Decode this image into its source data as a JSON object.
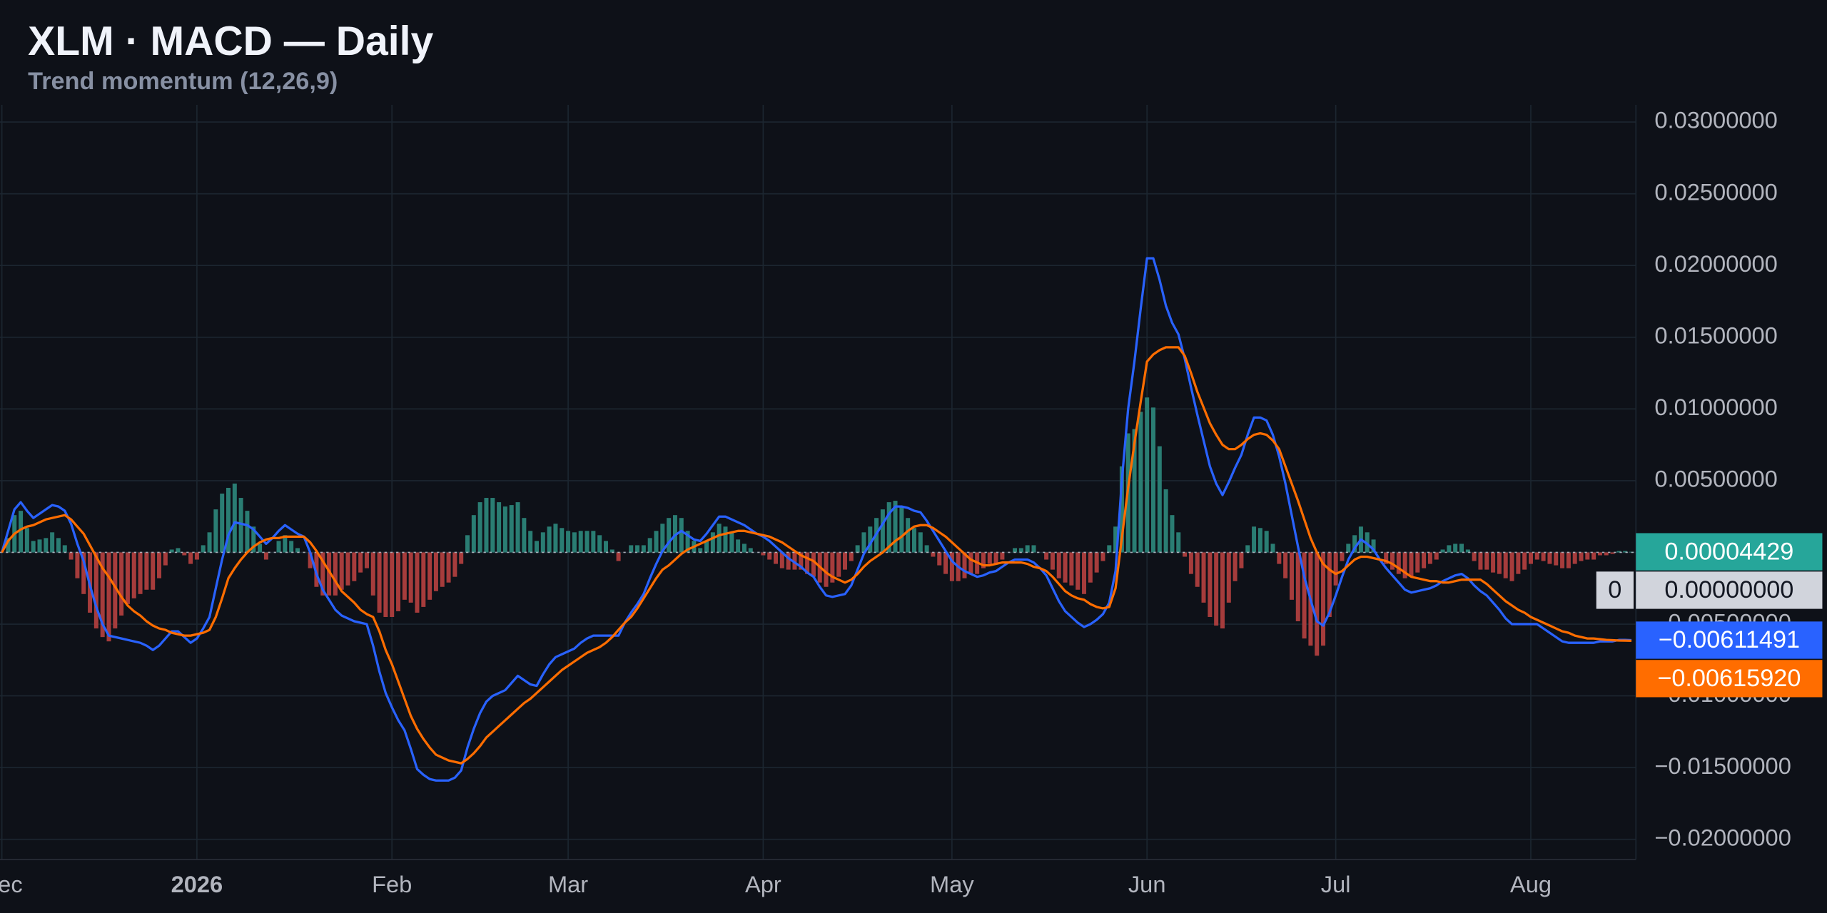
{
  "chart_data": {
    "type": "macd",
    "title": "XLM · MACD — Daily",
    "subtitle": "Trend momentum (12,26,9)",
    "categories": [
      "Dec",
      null,
      null,
      null,
      null,
      null,
      null,
      null,
      null,
      null,
      null,
      null,
      null,
      null,
      null,
      null,
      null,
      null,
      null,
      null,
      null,
      null,
      null,
      null,
      null,
      null,
      null,
      null,
      null,
      null,
      null,
      "2026",
      null,
      null,
      null,
      null,
      null,
      null,
      null,
      null,
      null,
      null,
      null,
      null,
      null,
      null,
      null,
      null,
      null,
      null,
      null,
      null,
      null,
      null,
      null,
      null,
      null,
      null,
      null,
      null,
      null,
      null,
      "Feb",
      null,
      null,
      null,
      null,
      null,
      null,
      null,
      null,
      null,
      null,
      null,
      null,
      null,
      null,
      null,
      null,
      null,
      null,
      null,
      null,
      null,
      null,
      null,
      null,
      null,
      null,
      null,
      "Mar",
      null,
      null,
      null,
      null,
      null,
      null,
      null,
      null,
      null,
      null,
      null,
      null,
      null,
      null,
      null,
      null,
      null,
      null,
      null,
      null,
      null,
      null,
      null,
      null,
      null,
      null,
      null,
      null,
      null,
      null,
      "Apr",
      null,
      null,
      null,
      null,
      null,
      null,
      null,
      null,
      null,
      null,
      null,
      null,
      null,
      null,
      null,
      null,
      null,
      null,
      null,
      null,
      null,
      null,
      null,
      null,
      null,
      null,
      null,
      null,
      null,
      "May",
      null,
      null,
      null,
      null,
      null,
      null,
      null,
      null,
      null,
      null,
      null,
      null,
      null,
      null,
      null,
      null,
      null,
      null,
      null,
      null,
      null,
      null,
      null,
      null,
      null,
      null,
      null,
      null,
      null,
      null,
      "Jun",
      null,
      null,
      null,
      null,
      null,
      null,
      null,
      null,
      null,
      null,
      null,
      null,
      null,
      null,
      null,
      null,
      null,
      null,
      null,
      null,
      null,
      null,
      null,
      null,
      null,
      null,
      null,
      null,
      null,
      "Jul",
      null,
      null,
      null,
      null,
      null,
      null,
      null,
      null,
      null,
      null,
      null,
      null,
      null,
      null,
      null,
      null,
      null,
      null,
      null,
      null,
      null,
      null,
      null,
      null,
      null,
      null,
      null,
      null,
      null,
      null,
      "Aug",
      null,
      null,
      null,
      null,
      null,
      null,
      null,
      null,
      null,
      null,
      null,
      null,
      null,
      null,
      null,
      null
    ],
    "ylim": [
      -0.0214,
      0.0312
    ],
    "yticks": [
      {
        "value": 0.03,
        "label": "0.03000000"
      },
      {
        "value": 0.025,
        "label": "0.02500000"
      },
      {
        "value": 0.02,
        "label": "0.02000000"
      },
      {
        "value": 0.015,
        "label": "0.01500000"
      },
      {
        "value": 0.01,
        "label": "0.01000000"
      },
      {
        "value": 0.005,
        "label": "0.00500000"
      },
      {
        "value": 0,
        "label": "0.00000000"
      },
      {
        "value": -0.005,
        "label": "−0.00500000"
      },
      {
        "value": -0.01,
        "label": "−0.01000000"
      },
      {
        "value": -0.015,
        "label": "−0.01500000"
      },
      {
        "value": -0.02,
        "label": "−0.02000000"
      }
    ],
    "grid": true,
    "zero_line": {
      "value": 0,
      "tag": "0",
      "label": "0.00000000"
    },
    "histogram": {
      "positive_color": "#2a7d73",
      "negative_color": "#a63c3c",
      "tag_color": "#26a69a",
      "last_label": "0.00004429",
      "values": [
        0,
        0.001,
        0.0026,
        0.0029,
        0.0017,
        0.0008,
        0.0009,
        0.001,
        0.0014,
        0.001,
        0.0005,
        -0.0005,
        -0.0018,
        -0.0029,
        -0.0042,
        -0.0053,
        -0.0059,
        -0.0062,
        -0.0053,
        -0.0044,
        -0.0036,
        -0.0032,
        -0.0029,
        -0.0026,
        -0.0026,
        -0.0018,
        -0.0009,
        0.0002,
        0.0003,
        -0.0002,
        -0.0008,
        -0.0005,
        0.0005,
        0.0014,
        0.003,
        0.0041,
        0.0045,
        0.0048,
        0.0038,
        0.0029,
        0.0018,
        0.0006,
        -0.0005,
        0,
        0.0008,
        0.0012,
        0.0008,
        0.0003,
        0,
        -0.0011,
        -0.0024,
        -0.003,
        -0.003,
        -0.003,
        -0.0026,
        -0.0023,
        -0.002,
        -0.0014,
        -0.0011,
        -0.003,
        -0.0042,
        -0.0045,
        -0.0045,
        -0.0041,
        -0.0033,
        -0.0035,
        -0.0042,
        -0.0038,
        -0.0033,
        -0.0027,
        -0.0024,
        -0.0021,
        -0.0017,
        -0.0008,
        0.0012,
        0.0026,
        0.0035,
        0.0038,
        0.0038,
        0.0035,
        0.0032,
        0.0033,
        0.0035,
        0.0024,
        0.0015,
        0.0008,
        0.0014,
        0.0018,
        0.002,
        0.0017,
        0.0015,
        0.0014,
        0.0015,
        0.0015,
        0.0015,
        0.0012,
        0.0008,
        0.0002,
        -0.0006,
        0,
        0.0005,
        0.0005,
        0.0005,
        0.001,
        0.0015,
        0.002,
        0.0024,
        0.0026,
        0.0024,
        0.0015,
        0.0008,
        0.0003,
        0.0008,
        0.0014,
        0.002,
        0.0018,
        0.0014,
        0.0009,
        0.0006,
        0.0003,
        0,
        -0.0002,
        -0.0005,
        -0.0008,
        -0.0011,
        -0.0012,
        -0.0012,
        -0.0012,
        -0.0015,
        -0.0017,
        -0.0021,
        -0.0024,
        -0.0021,
        -0.0017,
        -0.0012,
        -0.0006,
        0.0005,
        0.0014,
        0.0018,
        0.0024,
        0.003,
        0.0035,
        0.0036,
        0.0032,
        0.0024,
        0.0017,
        0.0014,
        0.0005,
        -0.0003,
        -0.0009,
        -0.0015,
        -0.002,
        -0.002,
        -0.0018,
        -0.0015,
        -0.0015,
        -0.0011,
        -0.0008,
        -0.0008,
        -0.0005,
        0,
        0.0003,
        0.0003,
        0.0005,
        0.0005,
        0,
        -0.0005,
        -0.0012,
        -0.0018,
        -0.0021,
        -0.0023,
        -0.0026,
        -0.0029,
        -0.0021,
        -0.0014,
        -0.0006,
        0.0005,
        0.0018,
        0.006,
        0.0083,
        0.0086,
        0.0098,
        0.0108,
        0.0101,
        0.0074,
        0.0044,
        0.0026,
        0.0014,
        -0.0003,
        -0.0015,
        -0.0024,
        -0.0035,
        -0.0045,
        -0.0051,
        -0.0053,
        -0.0035,
        -0.002,
        -0.0011,
        0.0005,
        0.0018,
        0.0017,
        0.0015,
        0.0006,
        -0.0008,
        -0.0018,
        -0.0033,
        -0.0048,
        -0.006,
        -0.0065,
        -0.0072,
        -0.0065,
        -0.0045,
        -0.0023,
        -0.0006,
        0.0006,
        0.0012,
        0.0018,
        0.0014,
        0.0009,
        0,
        -0.0008,
        -0.0012,
        -0.0015,
        -0.0018,
        -0.0017,
        -0.0014,
        -0.0011,
        -0.0008,
        -0.0005,
        0.0002,
        0.0005,
        0.0006,
        0.0006,
        0.0002,
        -0.0006,
        -0.0012,
        -0.0012,
        -0.0014,
        -0.0015,
        -0.0018,
        -0.002,
        -0.0015,
        -0.0012,
        -0.0008,
        -0.0005,
        -0.0006,
        -0.0008,
        -0.0009,
        -0.0011,
        -0.0011,
        -0.0008,
        -0.0006,
        -0.0005,
        -0.0005,
        -0.0002,
        -0.0002,
        -0.0001,
        0.0001,
        0.0001,
        4.429e-05
      ]
    },
    "series": [
      {
        "color": "#2962ff",
        "last_label": "−0.00611491",
        "values": [
          0,
          0.0015,
          0.003,
          0.0035,
          0.0029,
          0.0024,
          0.0027,
          0.003,
          0.0033,
          0.0032,
          0.0029,
          0.002,
          0.0006,
          -0.0006,
          -0.0023,
          -0.0038,
          -0.005,
          -0.0058,
          -0.0059,
          -0.006,
          -0.0061,
          -0.0062,
          -0.0063,
          -0.0065,
          -0.0068,
          -0.0065,
          -0.006,
          -0.0055,
          -0.0055,
          -0.0059,
          -0.0063,
          -0.006,
          -0.0053,
          -0.0045,
          -0.0025,
          -0.0005,
          0.0012,
          0.0021,
          0.002,
          0.0019,
          0.0016,
          0.0011,
          0.0006,
          0.001,
          0.0015,
          0.0019,
          0.0016,
          0.0013,
          0.0011,
          0,
          -0.0015,
          -0.0026,
          -0.0033,
          -0.004,
          -0.0044,
          -0.0046,
          -0.0048,
          -0.0049,
          -0.005,
          -0.0065,
          -0.0083,
          -0.0098,
          -0.0108,
          -0.0117,
          -0.0124,
          -0.0137,
          -0.0151,
          -0.0155,
          -0.0158,
          -0.0159,
          -0.0159,
          -0.0159,
          -0.0157,
          -0.0152,
          -0.0136,
          -0.0123,
          -0.0112,
          -0.0104,
          -0.01,
          -0.0098,
          -0.0096,
          -0.0091,
          -0.0086,
          -0.0089,
          -0.0092,
          -0.0093,
          -0.0085,
          -0.0078,
          -0.0073,
          -0.0071,
          -0.0069,
          -0.0067,
          -0.0063,
          -0.006,
          -0.0058,
          -0.0058,
          -0.0058,
          -0.0058,
          -0.0058,
          -0.0049,
          -0.0042,
          -0.0036,
          -0.0029,
          -0.0018,
          -0.0008,
          0.0001,
          0.0007,
          0.0012,
          0.0015,
          0.0012,
          0.0009,
          0.0008,
          0.0013,
          0.0019,
          0.0025,
          0.0025,
          0.0023,
          0.0021,
          0.0019,
          0.0016,
          0.0013,
          0.0011,
          0.0008,
          0.0004,
          0,
          -0.0004,
          -0.0007,
          -0.001,
          -0.0014,
          -0.0017,
          -0.0024,
          -0.003,
          -0.0031,
          -0.003,
          -0.0029,
          -0.0023,
          -0.0012,
          -0.0001,
          0.0006,
          0.0013,
          0.002,
          0.0027,
          0.0032,
          0.0032,
          0.0031,
          0.0029,
          0.0028,
          0.0022,
          0.0015,
          0.0008,
          0.0001,
          -0.0006,
          -0.001,
          -0.0013,
          -0.0015,
          -0.0017,
          -0.0016,
          -0.0014,
          -0.0013,
          -0.001,
          -0.0007,
          -0.0005,
          -0.0005,
          -0.0005,
          -0.0007,
          -0.0011,
          -0.0016,
          -0.0025,
          -0.0034,
          -0.0041,
          -0.0045,
          -0.0049,
          -0.0052,
          -0.005,
          -0.0047,
          -0.0043,
          -0.0035,
          -0.0013,
          0.005,
          0.01,
          0.0133,
          0.017,
          0.0205,
          0.0205,
          0.019,
          0.0172,
          0.016,
          0.0152,
          0.0135,
          0.0115,
          0.0096,
          0.0078,
          0.006,
          0.0048,
          0.004,
          0.0049,
          0.0059,
          0.0068,
          0.0082,
          0.0094,
          0.0094,
          0.0092,
          0.0082,
          0.0067,
          0.0048,
          0.0026,
          0.0004,
          -0.0017,
          -0.0033,
          -0.0048,
          -0.0051,
          -0.0042,
          -0.003,
          -0.0017,
          -0.0005,
          0.0003,
          0.0009,
          0.0006,
          0.0002,
          -0.0005,
          -0.0011,
          -0.0016,
          -0.0021,
          -0.0026,
          -0.0028,
          -0.0027,
          -0.0026,
          -0.0025,
          -0.0023,
          -0.002,
          -0.0018,
          -0.0016,
          -0.0015,
          -0.0018,
          -0.0023,
          -0.0027,
          -0.003,
          -0.0035,
          -0.004,
          -0.0046,
          -0.005,
          -0.005,
          -0.005,
          -0.005,
          -0.005,
          -0.0053,
          -0.0056,
          -0.0059,
          -0.0062,
          -0.0063,
          -0.0063,
          -0.0063,
          -0.0063,
          -0.0063,
          -0.0062,
          -0.0062,
          -0.0062,
          -0.0061,
          -0.0061,
          -0.00611491
        ]
      },
      {
        "color": "#ff6d00",
        "last_label": "−0.00615920",
        "values": [
          0,
          0.0008,
          0.0013,
          0.0016,
          0.0018,
          0.0019,
          0.0021,
          0.0023,
          0.0024,
          0.0025,
          0.0026,
          0.0023,
          0.0018,
          0.0013,
          0.0005,
          -0.0003,
          -0.0011,
          -0.0017,
          -0.0024,
          -0.0031,
          -0.0037,
          -0.0041,
          -0.0044,
          -0.0048,
          -0.0051,
          -0.0053,
          -0.0054,
          -0.0056,
          -0.0057,
          -0.0058,
          -0.0058,
          -0.0057,
          -0.0056,
          -0.0054,
          -0.0045,
          -0.0032,
          -0.0018,
          -0.0011,
          -0.0005,
          0,
          0.0004,
          0.0007,
          0.0009,
          0.001,
          0.001,
          0.0011,
          0.0011,
          0.0011,
          0.0011,
          0.0007,
          0.0001,
          -0.0006,
          -0.0013,
          -0.002,
          -0.0027,
          -0.0031,
          -0.0035,
          -0.004,
          -0.0043,
          -0.0045,
          -0.0055,
          -0.0068,
          -0.0078,
          -0.009,
          -0.0102,
          -0.0114,
          -0.0123,
          -0.013,
          -0.0136,
          -0.0141,
          -0.0143,
          -0.0145,
          -0.0146,
          -0.0147,
          -0.0144,
          -0.014,
          -0.0135,
          -0.0129,
          -0.0125,
          -0.0121,
          -0.0117,
          -0.0113,
          -0.0109,
          -0.0105,
          -0.0102,
          -0.0098,
          -0.0094,
          -0.009,
          -0.0086,
          -0.0082,
          -0.0079,
          -0.0076,
          -0.0073,
          -0.007,
          -0.0068,
          -0.0066,
          -0.0063,
          -0.0059,
          -0.0054,
          -0.0049,
          -0.0045,
          -0.0039,
          -0.0032,
          -0.0025,
          -0.0018,
          -0.0012,
          -0.0009,
          -0.0005,
          -0.0001,
          0.0002,
          0.0004,
          0.0006,
          0.0008,
          0.001,
          0.0012,
          0.0013,
          0.0014,
          0.0015,
          0.0015,
          0.0014,
          0.0013,
          0.0012,
          0.0011,
          0.0009,
          0.0007,
          0.0004,
          0.0001,
          -0.0002,
          -0.0004,
          -0.0006,
          -0.001,
          -0.0014,
          -0.0017,
          -0.0019,
          -0.0021,
          -0.0019,
          -0.0015,
          -0.001,
          -0.0006,
          -0.0003,
          0,
          0.0004,
          0.0008,
          0.0011,
          0.0015,
          0.0018,
          0.0019,
          0.0019,
          0.0017,
          0.0014,
          0.0011,
          0.0007,
          0.0003,
          -0.0001,
          -0.0005,
          -0.0007,
          -0.0009,
          -0.0009,
          -0.0008,
          -0.0007,
          -0.0007,
          -0.0007,
          -0.0007,
          -0.0008,
          -0.001,
          -0.0011,
          -0.0013,
          -0.0017,
          -0.0022,
          -0.0027,
          -0.003,
          -0.0032,
          -0.0033,
          -0.0036,
          -0.0038,
          -0.0039,
          -0.0038,
          -0.0025,
          0.001,
          0.0045,
          0.0076,
          0.0105,
          0.0133,
          0.0138,
          0.0141,
          0.0143,
          0.0143,
          0.0143,
          0.0137,
          0.0125,
          0.0112,
          0.0101,
          0.009,
          0.0082,
          0.0075,
          0.0072,
          0.0072,
          0.0075,
          0.0079,
          0.0082,
          0.0083,
          0.0082,
          0.0078,
          0.0072,
          0.006,
          0.0048,
          0.0036,
          0.0023,
          0.001,
          0,
          -0.0008,
          -0.0012,
          -0.0015,
          -0.0013,
          -0.0009,
          -0.0005,
          -0.0003,
          -0.0003,
          -0.0004,
          -0.0005,
          -0.0006,
          -0.0008,
          -0.0011,
          -0.0014,
          -0.0017,
          -0.0018,
          -0.0019,
          -0.002,
          -0.002,
          -0.0021,
          -0.0021,
          -0.002,
          -0.0019,
          -0.0019,
          -0.0019,
          -0.0019,
          -0.0022,
          -0.0026,
          -0.003,
          -0.0034,
          -0.0037,
          -0.004,
          -0.0042,
          -0.0045,
          -0.0047,
          -0.0049,
          -0.0051,
          -0.0053,
          -0.0055,
          -0.0056,
          -0.0058,
          -0.0059,
          -0.006,
          -0.006,
          -0.00605,
          -0.0061,
          -0.00612,
          -0.00614,
          -0.00615,
          -0.0061592
        ]
      }
    ]
  }
}
